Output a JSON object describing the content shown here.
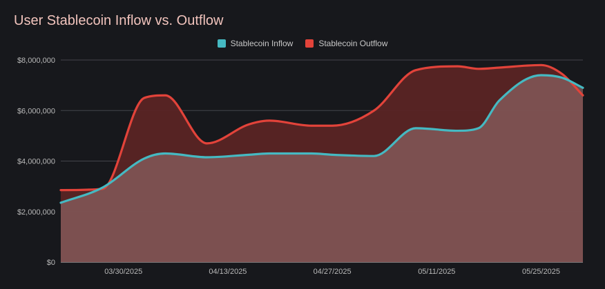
{
  "chart_data": {
    "type": "area",
    "title": "User Stablecoin Inflow vs. Outflow",
    "xlabel": "",
    "ylabel": "",
    "ylim": [
      0,
      8000000
    ],
    "yticks": [
      0,
      2000000,
      4000000,
      6000000,
      8000000
    ],
    "ytick_labels": [
      "$0",
      "$2,000,000",
      "$4,000,000",
      "$6,000,000",
      "$8,000,000"
    ],
    "xlim": [
      0,
      25
    ],
    "xticks": [
      {
        "x": 3,
        "label": "03/30/2025"
      },
      {
        "x": 8,
        "label": "04/13/2025"
      },
      {
        "x": 13,
        "label": "04/27/2025"
      },
      {
        "x": 18,
        "label": "05/11/2025"
      },
      {
        "x": 23,
        "label": "05/25/2025"
      }
    ],
    "x": [
      0,
      2,
      4,
      5,
      7,
      9,
      10,
      12,
      13,
      15,
      17,
      19,
      20,
      21,
      23,
      24,
      25
    ],
    "series": [
      {
        "name": "Stablecoin Inflow",
        "color": "#45b9c2",
        "values": [
          2350000,
          2950000,
          4100000,
          4300000,
          4150000,
          4250000,
          4300000,
          4300000,
          4250000,
          4200000,
          5300000,
          5200000,
          5300000,
          6400000,
          7400000,
          7300000,
          6900000
        ]
      },
      {
        "name": "Stablecoin Outflow",
        "color": "#e2433a",
        "values": [
          2850000,
          2900000,
          6500000,
          6600000,
          4700000,
          5450000,
          5600000,
          5400000,
          5400000,
          6000000,
          7600000,
          7750000,
          7650000,
          7700000,
          7800000,
          7450000,
          6600000
        ]
      }
    ]
  }
}
